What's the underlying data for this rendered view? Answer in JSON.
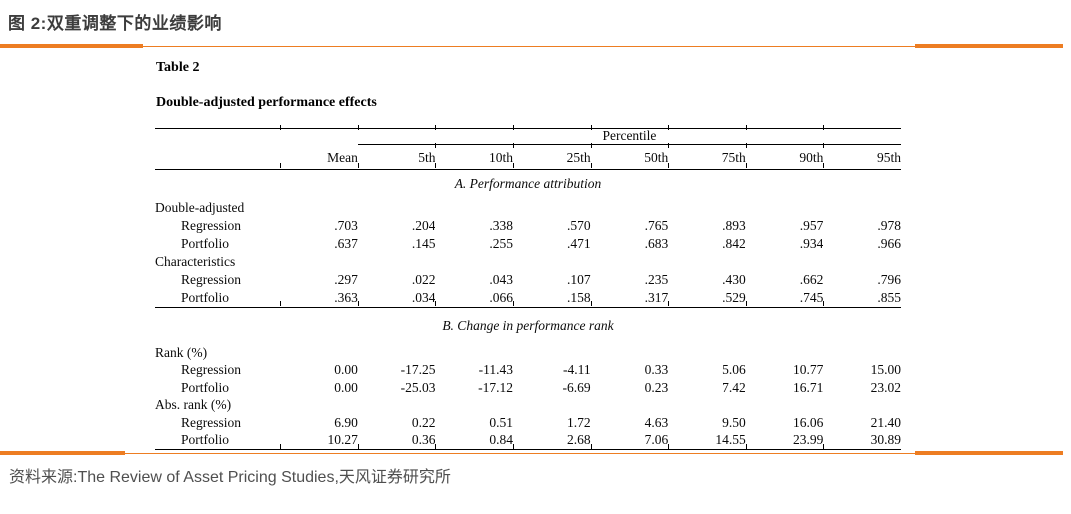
{
  "page": {
    "figure_title": "图 2:双重调整下的业绩影响",
    "source_line": "资料来源:The Review of Asset Pricing Studies,天风证券研究所",
    "accent_color": "#ED7D22"
  },
  "table": {
    "label": "Table 2",
    "title": "Double-adjusted performance effects",
    "percentile_header": "Percentile",
    "columns": [
      "Mean",
      "5th",
      "10th",
      "25th",
      "50th",
      "75th",
      "90th",
      "95th"
    ],
    "panels": [
      {
        "title": "A. Performance attribution",
        "rows": [
          {
            "label": "Double-adjusted",
            "values": []
          },
          {
            "label": "Regression",
            "values": [
              ".703",
              ".204",
              ".338",
              ".570",
              ".765",
              ".893",
              ".957",
              ".978"
            ]
          },
          {
            "label": "Portfolio",
            "values": [
              ".637",
              ".145",
              ".255",
              ".471",
              ".683",
              ".842",
              ".934",
              ".966"
            ]
          },
          {
            "label": "Characteristics",
            "values": []
          },
          {
            "label": "Regression",
            "values": [
              ".297",
              ".022",
              ".043",
              ".107",
              ".235",
              ".430",
              ".662",
              ".796"
            ]
          },
          {
            "label": "Portfolio",
            "values": [
              ".363",
              ".034",
              ".066",
              ".158",
              ".317",
              ".529",
              ".745",
              ".855"
            ]
          }
        ]
      },
      {
        "title": "B. Change in performance rank",
        "rows": [
          {
            "label": "Rank (%)",
            "values": []
          },
          {
            "label": "Regression",
            "values": [
              "0.00",
              "-17.25",
              "-11.43",
              "-4.11",
              "0.33",
              "5.06",
              "10.77",
              "15.00"
            ]
          },
          {
            "label": "Portfolio",
            "values": [
              "0.00",
              "-25.03",
              "-17.12",
              "-6.69",
              "0.23",
              "7.42",
              "16.71",
              "23.02"
            ]
          },
          {
            "label": "Abs. rank (%)",
            "values": []
          },
          {
            "label": "Regression",
            "values": [
              "6.90",
              "0.22",
              "0.51",
              "1.72",
              "4.63",
              "9.50",
              "16.06",
              "21.40"
            ]
          },
          {
            "label": "Portfolio",
            "values": [
              "10.27",
              "0.36",
              "0.84",
              "2.68",
              "7.06",
              "14.55",
              "23.99",
              "30.89"
            ]
          }
        ]
      }
    ]
  }
}
